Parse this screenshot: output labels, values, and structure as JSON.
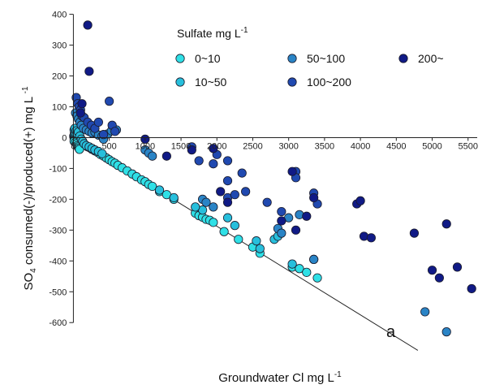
{
  "chart_data": {
    "type": "scatter",
    "xlabel": "Groundwater Cl mg L",
    "xlabel_sup": "-1",
    "ylabel_main": "SO",
    "ylabel_sub": "4",
    "ylabel_rest": " consumed(-)/produced(+) mg L ",
    "ylabel_sup": "-1",
    "xlim": [
      -50,
      5650
    ],
    "ylim": [
      -660,
      420
    ],
    "x_ticks": [
      0,
      500,
      1000,
      1500,
      2000,
      2500,
      3000,
      3500,
      4000,
      4500,
      5000,
      5500
    ],
    "y_ticks": [
      -600,
      -500,
      -400,
      -300,
      -200,
      -100,
      0,
      100,
      200,
      300,
      400
    ],
    "zero_line": true,
    "grid": false,
    "legend": {
      "title_main": "Sulfate mg L",
      "title_sup": "-1",
      "placement": "top-center",
      "entries": [
        {
          "label": "0~10",
          "color": "#2fe0e6"
        },
        {
          "label": "10~50",
          "color": "#27bfdc"
        },
        {
          "label": "50~100",
          "color": "#2a84c6"
        },
        {
          "label": "100~200",
          "color": "#2049b0"
        },
        {
          "label": "200~",
          "color": "#101a86"
        }
      ]
    },
    "reference_line": {
      "label": "a",
      "x": [
        0,
        4800
      ],
      "y": [
        0,
        -690
      ]
    },
    "series": [
      {
        "color": "#2fe0e6",
        "points": [
          [
            5,
            5
          ],
          [
            10,
            -2
          ],
          [
            15,
            8
          ],
          [
            20,
            -3
          ],
          [
            25,
            2
          ],
          [
            30,
            -6
          ],
          [
            35,
            -4
          ],
          [
            40,
            -7
          ],
          [
            50,
            -8
          ],
          [
            60,
            -10
          ],
          [
            70,
            -11
          ],
          [
            80,
            -12
          ],
          [
            90,
            -15
          ],
          [
            100,
            -16
          ],
          [
            120,
            -18
          ],
          [
            140,
            -20
          ],
          [
            160,
            -24
          ],
          [
            180,
            -27
          ],
          [
            200,
            -30
          ],
          [
            230,
            -33
          ],
          [
            260,
            -38
          ],
          [
            300,
            -43
          ],
          [
            340,
            -48
          ],
          [
            380,
            -55
          ],
          [
            420,
            -60
          ],
          [
            460,
            -66
          ],
          [
            500,
            -72
          ],
          [
            540,
            -78
          ],
          [
            580,
            -83
          ],
          [
            620,
            -90
          ],
          [
            680,
            -98
          ],
          [
            750,
            -108
          ],
          [
            820,
            -118
          ],
          [
            880,
            -127
          ],
          [
            950,
            -137
          ],
          [
            1000,
            -143
          ],
          [
            1050,
            -152
          ],
          [
            1100,
            -158
          ],
          [
            1200,
            -175
          ],
          [
            1300,
            -185
          ],
          [
            1400,
            -200
          ],
          [
            1700,
            -245
          ],
          [
            1750,
            -253
          ],
          [
            1800,
            -258
          ],
          [
            1850,
            -265
          ],
          [
            1900,
            -268
          ],
          [
            1950,
            -275
          ],
          [
            2100,
            -305
          ],
          [
            2300,
            -330
          ],
          [
            2500,
            -355
          ],
          [
            2600,
            -375
          ],
          [
            3050,
            -420
          ],
          [
            3150,
            -425
          ],
          [
            3250,
            -437
          ],
          [
            3400,
            -455
          ],
          [
            15,
            14
          ],
          [
            25,
            18
          ],
          [
            10,
            -12
          ],
          [
            30,
            -15
          ],
          [
            45,
            -20
          ],
          [
            55,
            -26
          ],
          [
            65,
            -30
          ],
          [
            75,
            -34
          ],
          [
            85,
            -38
          ]
        ]
      },
      {
        "color": "#27bfdc",
        "points": [
          [
            10,
            25
          ],
          [
            20,
            30
          ],
          [
            30,
            15
          ],
          [
            40,
            22
          ],
          [
            55,
            12
          ],
          [
            70,
            18
          ],
          [
            90,
            5
          ],
          [
            110,
            -5
          ],
          [
            130,
            -12
          ],
          [
            150,
            -20
          ],
          [
            180,
            -26
          ],
          [
            220,
            -30
          ],
          [
            260,
            -35
          ],
          [
            300,
            -40
          ],
          [
            350,
            -45
          ],
          [
            400,
            -52
          ],
          [
            1800,
            -235
          ],
          [
            1700,
            -225
          ],
          [
            2800,
            -330
          ],
          [
            2850,
            -320
          ],
          [
            2250,
            -285
          ],
          [
            2600,
            -360
          ],
          [
            2150,
            -260
          ],
          [
            3350,
            -395
          ],
          [
            3050,
            -410
          ],
          [
            1400,
            -195
          ],
          [
            1200,
            -170
          ],
          [
            2550,
            -335
          ]
        ]
      },
      {
        "color": "#2a84c6",
        "points": [
          [
            30,
            80
          ],
          [
            50,
            70
          ],
          [
            70,
            60
          ],
          [
            90,
            50
          ],
          [
            110,
            40
          ],
          [
            140,
            30
          ],
          [
            180,
            25
          ],
          [
            220,
            20
          ],
          [
            260,
            15
          ],
          [
            300,
            18
          ],
          [
            350,
            8
          ],
          [
            400,
            5
          ],
          [
            420,
            -5
          ],
          [
            480,
            12
          ],
          [
            530,
            22
          ],
          [
            600,
            25
          ],
          [
            1000,
            -40
          ],
          [
            1050,
            -50
          ],
          [
            1100,
            -60
          ],
          [
            1800,
            -200
          ],
          [
            1850,
            -210
          ],
          [
            2850,
            -295
          ],
          [
            2900,
            -310
          ],
          [
            3000,
            -260
          ],
          [
            3350,
            -395
          ],
          [
            4900,
            -565
          ],
          [
            5200,
            -630
          ],
          [
            3150,
            -250
          ],
          [
            1950,
            -225
          ]
        ]
      },
      {
        "color": "#2049b0",
        "points": [
          [
            40,
            130
          ],
          [
            60,
            110
          ],
          [
            80,
            100
          ],
          [
            100,
            90
          ],
          [
            120,
            70
          ],
          [
            150,
            65
          ],
          [
            200,
            50
          ],
          [
            250,
            40
          ],
          [
            300,
            30
          ],
          [
            350,
            50
          ],
          [
            420,
            10
          ],
          [
            500,
            118
          ],
          [
            540,
            40
          ],
          [
            580,
            20
          ],
          [
            1950,
            -85
          ],
          [
            2000,
            -55
          ],
          [
            2150,
            -140
          ],
          [
            2150,
            -195
          ],
          [
            2250,
            -185
          ],
          [
            2350,
            -115
          ],
          [
            2400,
            -175
          ],
          [
            2700,
            -210
          ],
          [
            2900,
            -240
          ],
          [
            3100,
            -110
          ],
          [
            3100,
            -130
          ],
          [
            3350,
            -180
          ],
          [
            3400,
            -215
          ],
          [
            2150,
            -75
          ],
          [
            1650,
            -30
          ],
          [
            1750,
            -75
          ]
        ]
      },
      {
        "color": "#101a86",
        "points": [
          [
            200,
            365
          ],
          [
            220,
            215
          ],
          [
            120,
            110
          ],
          [
            100,
            80
          ],
          [
            1000,
            -5
          ],
          [
            1300,
            -60
          ],
          [
            1650,
            -40
          ],
          [
            1950,
            -35
          ],
          [
            2050,
            -175
          ],
          [
            2150,
            -210
          ],
          [
            2900,
            -270
          ],
          [
            3050,
            -110
          ],
          [
            3100,
            -300
          ],
          [
            3250,
            -255
          ],
          [
            3350,
            -195
          ],
          [
            3950,
            -215
          ],
          [
            4000,
            -205
          ],
          [
            4050,
            -320
          ],
          [
            4150,
            -325
          ],
          [
            4750,
            -310
          ],
          [
            5000,
            -430
          ],
          [
            5100,
            -455
          ],
          [
            5200,
            -280
          ],
          [
            5350,
            -420
          ],
          [
            5550,
            -490
          ]
        ]
      }
    ]
  }
}
